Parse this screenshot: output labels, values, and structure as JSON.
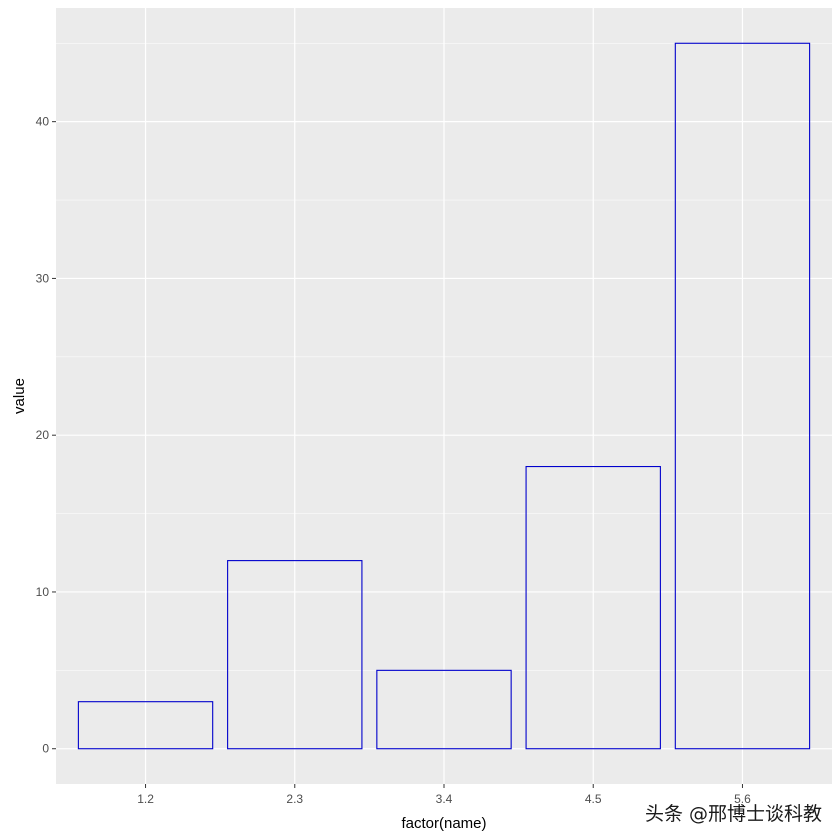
{
  "chart_data": {
    "type": "bar",
    "categories": [
      "1.2",
      "2.3",
      "3.4",
      "4.5",
      "5.6"
    ],
    "values": [
      3,
      12,
      5,
      18,
      45
    ],
    "xlabel": "factor(name)",
    "ylabel": "value",
    "ylim": [
      -2.25,
      47.25
    ],
    "yticks": [
      0,
      10,
      20,
      30,
      40
    ],
    "grid": true,
    "legend": "none",
    "colors": {
      "panel_background": "#ebebeb",
      "grid_major": "#ffffff",
      "bar_outline": "#0000cc",
      "bar_fill": "none",
      "tick_text": "#4d4d4d"
    }
  },
  "watermark": "头条 @邢博士谈科教"
}
